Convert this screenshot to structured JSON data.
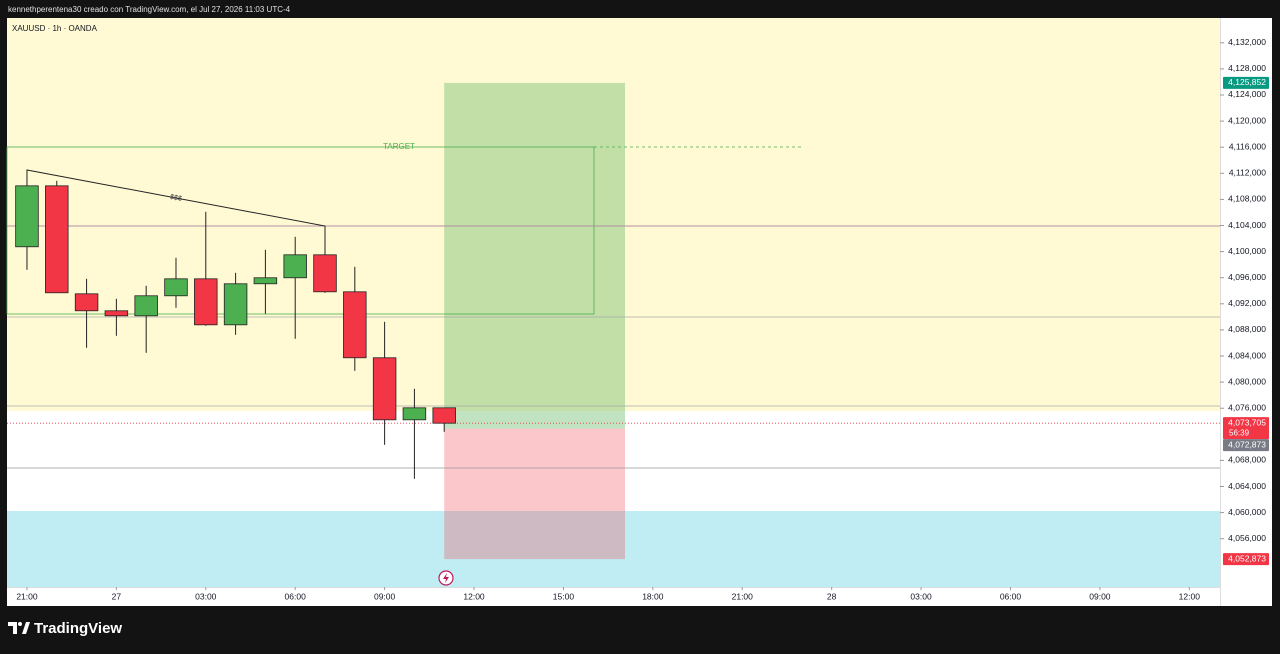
{
  "header": {
    "caption": "kennethperentena30 creado con TradingView.com, el Jul 27, 2026 11:03 UTC-4",
    "symbol": "XAUUSD · 1h · OANDA"
  },
  "chart_data": {
    "type": "candlestick",
    "x": [
      0,
      1,
      2,
      3,
      4,
      5,
      6,
      7,
      8,
      9,
      10,
      11,
      12,
      13,
      14
    ],
    "open": [
      4100740,
      4110080,
      4093530,
      4090930,
      4090160,
      4093230,
      4095830,
      4088780,
      4095070,
      4095990,
      4099510,
      4093840,
      4083730,
      4074220,
      4076060
    ],
    "high": [
      4112230,
      4110850,
      4095830,
      4092770,
      4094760,
      4099050,
      4106100,
      4096750,
      4100280,
      4102270,
      4103960,
      4097670,
      4089240,
      4078970,
      4076060
    ],
    "low": [
      4097210,
      4093690,
      4085260,
      4087100,
      4084490,
      4091390,
      4088630,
      4087250,
      4090470,
      4086640,
      4093690,
      4081730,
      4070390,
      4065180,
      4072380
    ],
    "close": [
      4110080,
      4093690,
      4090930,
      4090160,
      4093230,
      4095830,
      4088780,
      4095070,
      4095990,
      4099510,
      4093840,
      4083730,
      4074220,
      4076060,
      4073705
    ],
    "up_color": "#4caf50",
    "down_color": "#f23645",
    "xlim": [
      -0.67,
      40.03
    ],
    "xticks": [
      {
        "value": 0,
        "label": "21:00"
      },
      {
        "value": 3,
        "label": "27"
      },
      {
        "value": 6,
        "label": "03:00"
      },
      {
        "value": 9,
        "label": "06:00"
      },
      {
        "value": 12,
        "label": "09:00"
      },
      {
        "value": 15,
        "label": "12:00"
      },
      {
        "value": 18,
        "label": "15:00"
      },
      {
        "value": 21,
        "label": "18:00"
      },
      {
        "value": 24,
        "label": "21:00"
      },
      {
        "value": 27,
        "label": "28"
      },
      {
        "value": 30,
        "label": "03:00"
      },
      {
        "value": 33,
        "label": "06:00"
      },
      {
        "value": 36,
        "label": "09:00"
      },
      {
        "value": 39,
        "label": "12:00"
      }
    ],
    "ylim": [
      4048600,
      4135800
    ],
    "yticks": [
      {
        "value": 4132000,
        "label": "4,132,000"
      },
      {
        "value": 4128000,
        "label": "4,128,000"
      },
      {
        "value": 4124000,
        "label": "4,124,000"
      },
      {
        "value": 4120000,
        "label": "4,120,000"
      },
      {
        "value": 4116000,
        "label": "4,116,000"
      },
      {
        "value": 4112000,
        "label": "4,112,000"
      },
      {
        "value": 4108000,
        "label": "4,108,000"
      },
      {
        "value": 4104000,
        "label": "4,104,000"
      },
      {
        "value": 4100000,
        "label": "4,100,000"
      },
      {
        "value": 4096000,
        "label": "4,096,000"
      },
      {
        "value": 4092000,
        "label": "4,092,000"
      },
      {
        "value": 4088000,
        "label": "4,088,000"
      },
      {
        "value": 4084000,
        "label": "4,084,000"
      },
      {
        "value": 4080000,
        "label": "4,080,000"
      },
      {
        "value": 4076000,
        "label": "4,076,000"
      },
      {
        "value": 4068000,
        "label": "4,068,000"
      },
      {
        "value": 4064000,
        "label": "4,064,000"
      },
      {
        "value": 4060000,
        "label": "4,060,000"
      },
      {
        "value": 4056000,
        "label": "4,056,000"
      }
    ],
    "price_tags": {
      "target": {
        "value": 4125852,
        "label": "4,125,852"
      },
      "last": {
        "value": 4073705,
        "label": "4,073,705"
      },
      "entry": {
        "value": 4072873,
        "label": "4,072,873"
      },
      "stop": {
        "value": 4052873,
        "label": "4,052,873"
      }
    },
    "countdown": "56:39",
    "annotations": [
      "TARGET",
      "$$$"
    ]
  },
  "footer": {
    "brand": "TradingView"
  }
}
